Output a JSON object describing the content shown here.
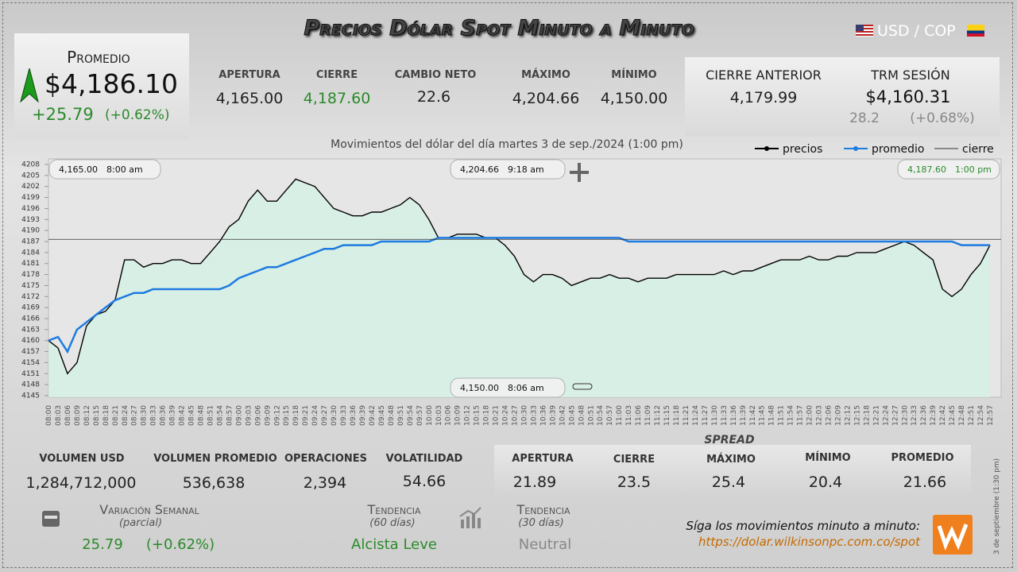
{
  "header": {
    "title": "Precios Dólar Spot Minuto a Minuto",
    "pair": "USD / COP"
  },
  "promedio": {
    "label": "Promedio",
    "price": "$4,186.10",
    "change": "+25.79",
    "change_pct": "(+0.62%)"
  },
  "session": [
    {
      "label": "APERTURA",
      "value": "4,165.00"
    },
    {
      "label": "CIERRE",
      "value": "4,187.60"
    },
    {
      "label": "CAMBIO NETO",
      "value": "22.6"
    },
    {
      "label": "MÁXIMO",
      "value": "4,204.66"
    },
    {
      "label": "MÍNIMO",
      "value": "4,150.00"
    }
  ],
  "previous": {
    "label": "CIERRE ANTERIOR",
    "value": "4,179.99"
  },
  "trm": {
    "label": "TRM SESIÓN",
    "value": "$4,160.31",
    "change": "28.2",
    "change_pct": "(+0.68%)"
  },
  "chart_data": {
    "type": "line",
    "title": "Movimientos del dólar del día martes 3 de sep./2024 (1:00 pm)",
    "x": [
      "08:00",
      "08:03",
      "08:06",
      "08:09",
      "08:12",
      "08:15",
      "08:18",
      "08:21",
      "08:24",
      "08:27",
      "08:30",
      "08:33",
      "08:36",
      "08:39",
      "08:42",
      "08:45",
      "08:48",
      "08:51",
      "08:54",
      "08:57",
      "09:00",
      "09:03",
      "09:06",
      "09:09",
      "09:12",
      "09:15",
      "09:18",
      "09:21",
      "09:24",
      "09:27",
      "09:30",
      "09:33",
      "09:36",
      "09:39",
      "09:42",
      "09:45",
      "09:48",
      "09:51",
      "09:54",
      "09:57",
      "10:00",
      "10:03",
      "10:06",
      "10:09",
      "10:12",
      "10:15",
      "10:18",
      "10:21",
      "10:24",
      "10:27",
      "10:30",
      "10:33",
      "10:36",
      "10:39",
      "10:42",
      "10:45",
      "10:48",
      "10:51",
      "10:54",
      "10:57",
      "11:00",
      "11:03",
      "11:06",
      "11:09",
      "11:12",
      "11:15",
      "11:18",
      "11:21",
      "11:24",
      "11:27",
      "11:30",
      "11:33",
      "11:36",
      "11:39",
      "11:42",
      "11:45",
      "11:48",
      "11:51",
      "11:54",
      "11:57",
      "12:00",
      "12:03",
      "12:06",
      "12:09",
      "12:12",
      "12:15",
      "12:18",
      "12:21",
      "12:24",
      "12:27",
      "12:30",
      "12:33",
      "12:36",
      "12:39",
      "12:42",
      "12:45",
      "12:48",
      "12:51",
      "12:54",
      "12:57"
    ],
    "series": [
      {
        "name": "precios",
        "color": "#000000",
        "values": [
          4160,
          4158,
          4151,
          4154,
          4164,
          4167,
          4168,
          4171,
          4182,
          4182,
          4180,
          4181,
          4181,
          4182,
          4182,
          4181,
          4181,
          4184,
          4187,
          4191,
          4193,
          4198,
          4201,
          4198,
          4198,
          4201,
          4204,
          4203,
          4202,
          4199,
          4196,
          4195,
          4194,
          4194,
          4195,
          4195,
          4196,
          4197,
          4199,
          4197,
          4193,
          4188,
          4188,
          4189,
          4189,
          4189,
          4188,
          4188,
          4186,
          4183,
          4178,
          4176,
          4178,
          4178,
          4177,
          4175,
          4176,
          4177,
          4177,
          4178,
          4177,
          4177,
          4176,
          4177,
          4177,
          4177,
          4178,
          4178,
          4178,
          4178,
          4178,
          4179,
          4178,
          4179,
          4179,
          4180,
          4181,
          4182,
          4182,
          4182,
          4183,
          4182,
          4182,
          4183,
          4183,
          4184,
          4184,
          4184,
          4185,
          4186,
          4187,
          4186,
          4184,
          4182,
          4174,
          4172,
          4174,
          4178,
          4181,
          4186
        ]
      },
      {
        "name": "promedio",
        "color": "#1e7be0",
        "values": [
          4160,
          4161,
          4157,
          4163,
          4165,
          4167,
          4169,
          4171,
          4172,
          4173,
          4173,
          4174,
          4174,
          4174,
          4174,
          4174,
          4174,
          4174,
          4174,
          4175,
          4177,
          4178,
          4179,
          4180,
          4180,
          4181,
          4182,
          4183,
          4184,
          4185,
          4185,
          4186,
          4186,
          4186,
          4186,
          4187,
          4187,
          4187,
          4187,
          4187,
          4187,
          4188,
          4188,
          4188,
          4188,
          4188,
          4188,
          4188,
          4188,
          4188,
          4188,
          4188,
          4188,
          4188,
          4188,
          4188,
          4188,
          4188,
          4188,
          4188,
          4188,
          4187,
          4187,
          4187,
          4187,
          4187,
          4187,
          4187,
          4187,
          4187,
          4187,
          4187,
          4187,
          4187,
          4187,
          4187,
          4187,
          4187,
          4187,
          4187,
          4187,
          4187,
          4187,
          4187,
          4187,
          4187,
          4187,
          4187,
          4187,
          4187,
          4187,
          4187,
          4187,
          4187,
          4187,
          4187,
          4186,
          4186,
          4186,
          4186
        ]
      },
      {
        "name": "cierre",
        "color": "#333333",
        "value": 4187.6
      }
    ],
    "ylim": [
      4145,
      4208
    ],
    "yticks": [
      4145,
      4148,
      4151,
      4154,
      4157,
      4160,
      4163,
      4166,
      4169,
      4172,
      4175,
      4178,
      4181,
      4184,
      4187,
      4190,
      4193,
      4196,
      4199,
      4202,
      4205,
      4208
    ],
    "annotations": [
      {
        "text": "4,165.00",
        "time": "8:00 am"
      },
      {
        "text": "4,204.66",
        "time": "9:18 am"
      },
      {
        "text": "4,187.60",
        "time": "1:00 pm"
      },
      {
        "text": "4,150.00",
        "time": "8:06 am"
      }
    ]
  },
  "volume": [
    {
      "label": "VOLUMEN USD",
      "value": "1,284,712,000"
    },
    {
      "label": "VOLUMEN PROMEDIO",
      "value": "536,638"
    },
    {
      "label": "OPERACIONES",
      "value": "2,394"
    },
    {
      "label": "VOLATILIDAD",
      "value": "54.66"
    }
  ],
  "spread": {
    "title": "SPREAD",
    "items": [
      {
        "label": "APERTURA",
        "value": "21.89"
      },
      {
        "label": "CIERRE",
        "value": "23.5"
      },
      {
        "label": "MÁXIMO",
        "value": "25.4"
      },
      {
        "label": "MÍNIMO",
        "value": "20.4"
      },
      {
        "label": "PROMEDIO",
        "value": "21.66"
      }
    ]
  },
  "weekly": {
    "label": "Variación Semanal",
    "note": "(parcial)",
    "change": "25.79",
    "change_pct": "(+0.62%)"
  },
  "trends": [
    {
      "label": "Tendencia",
      "note": "(60 días)",
      "value": "Alcista Leve"
    },
    {
      "label": "Tendencia",
      "note": "(30 días)",
      "value": "Neutral"
    }
  ],
  "footer": {
    "prompt": "Síga los movimientos minuto a minuto:",
    "url": "https://dolar.wilkinsonpc.com.co/spot",
    "stamp": "3 de septiembre (1:30 pm)"
  }
}
